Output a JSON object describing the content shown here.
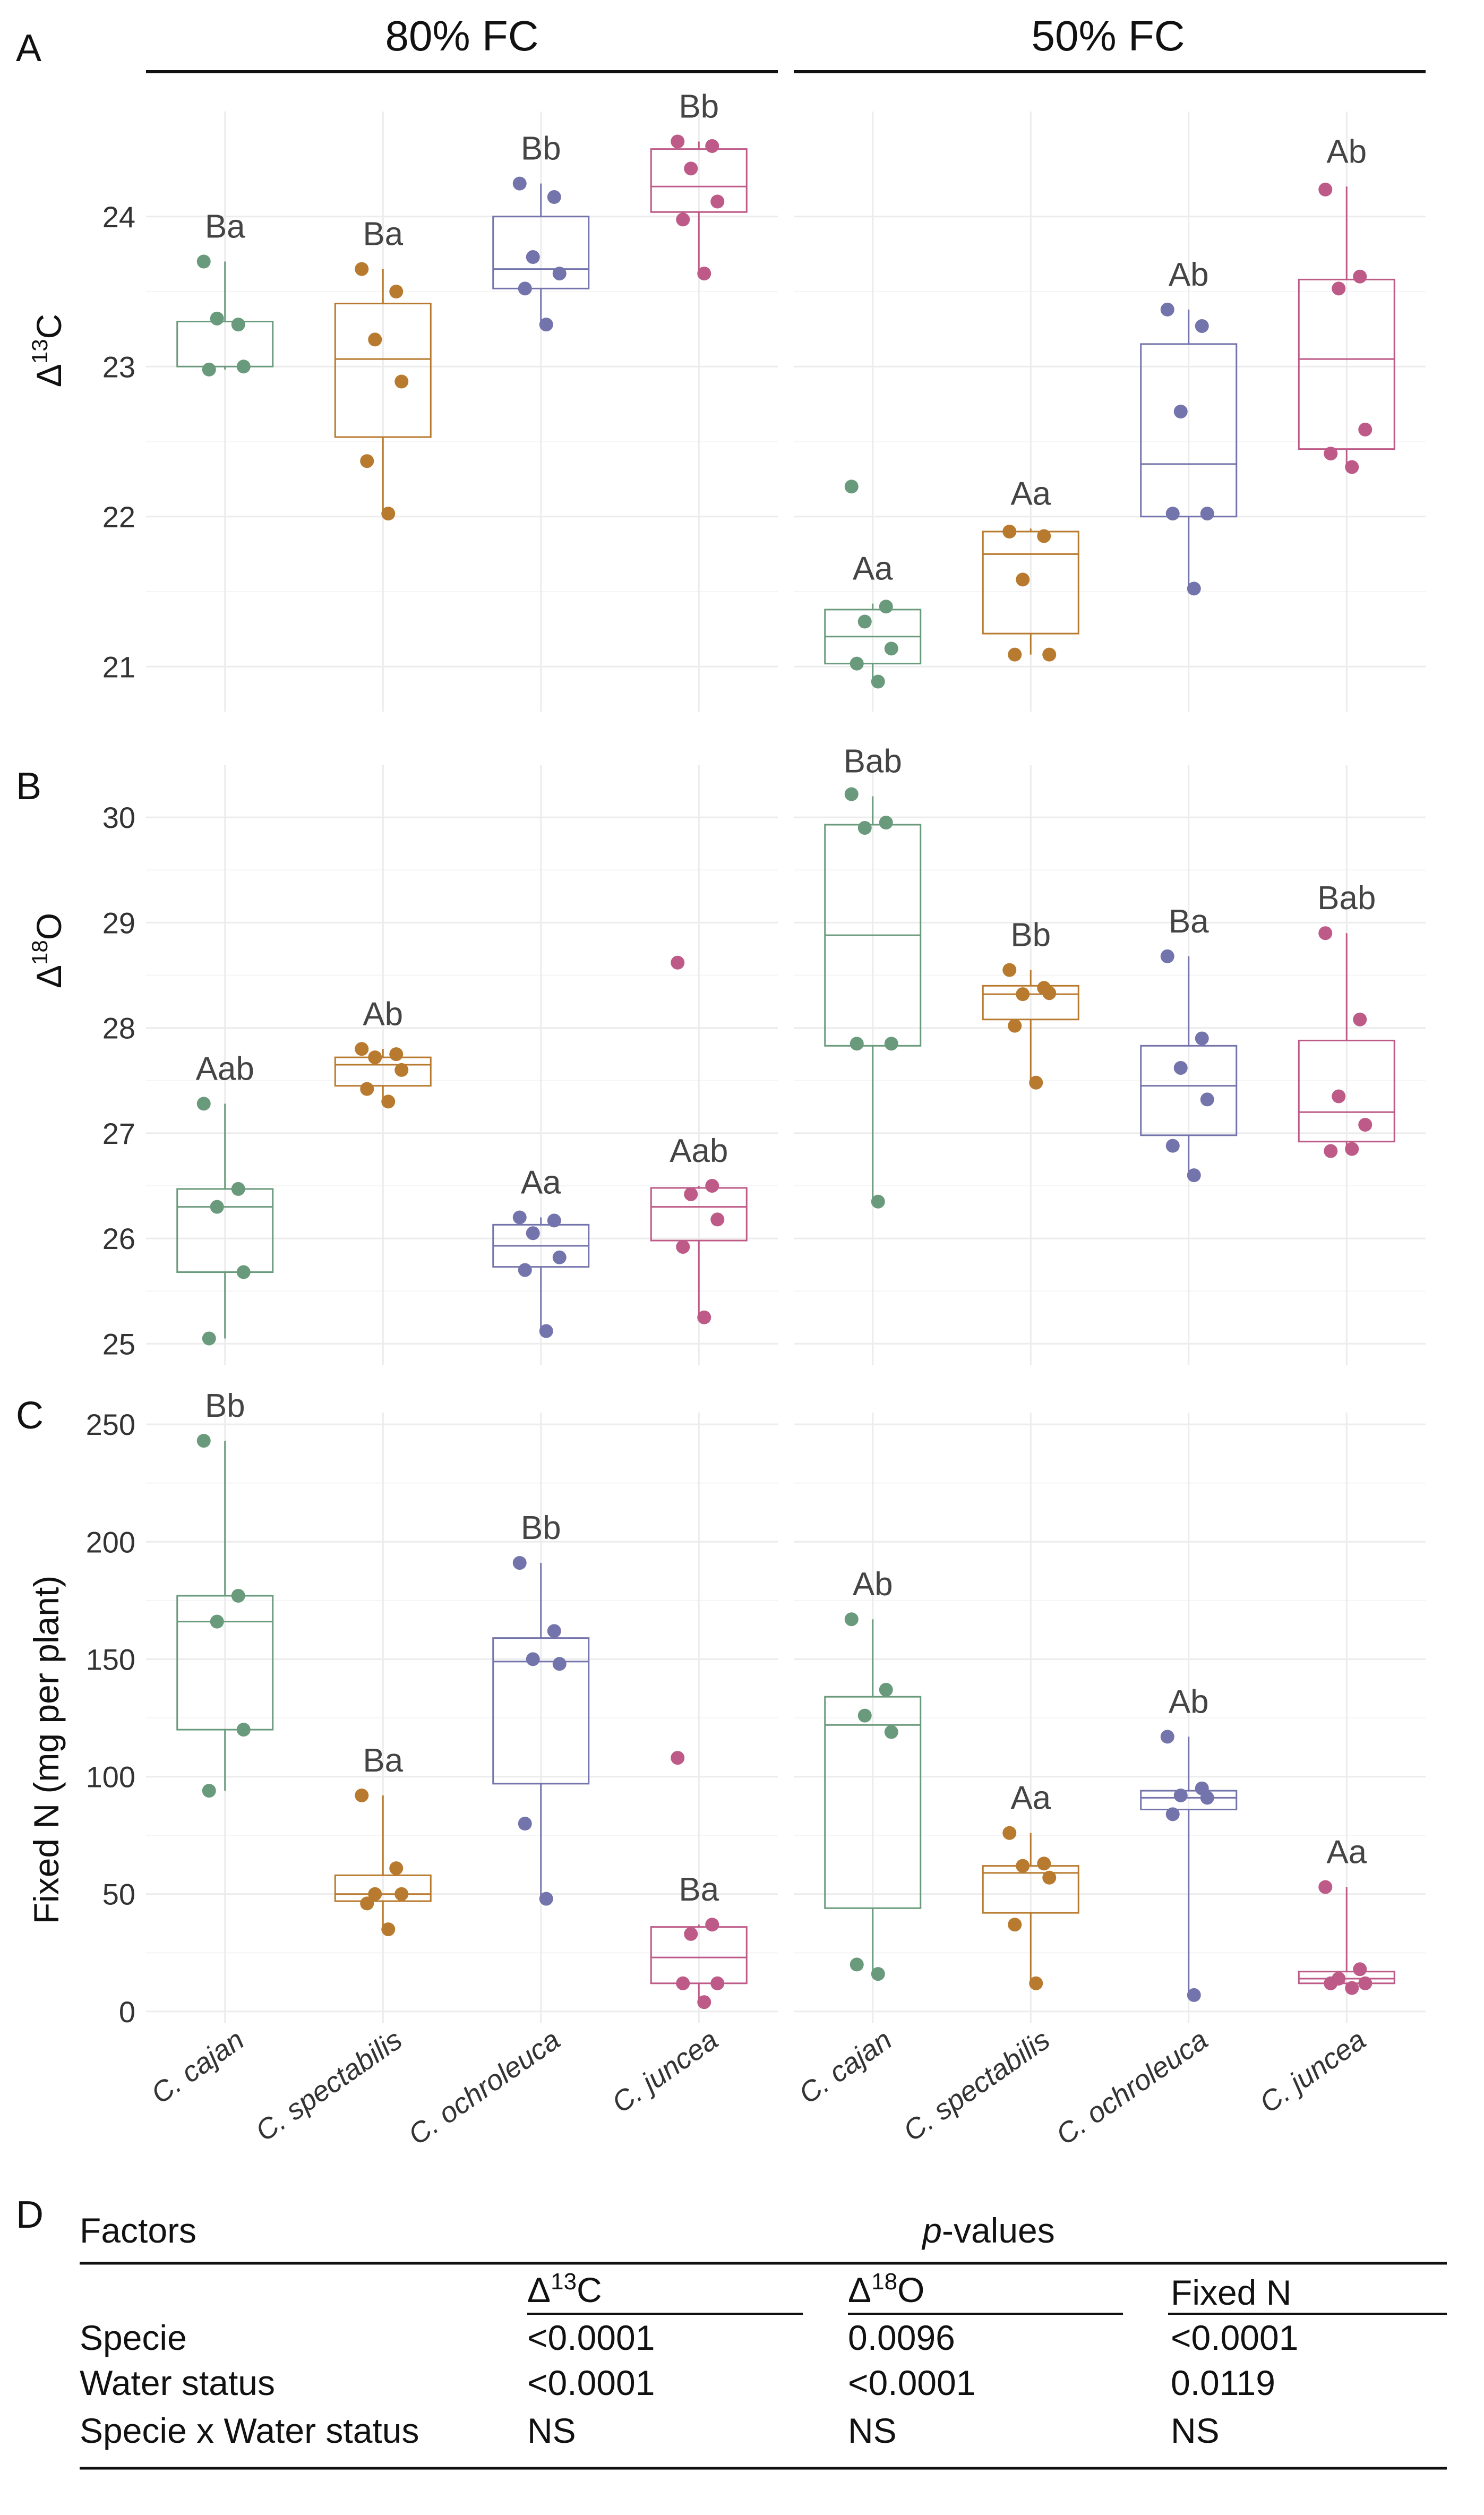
{
  "facets": [
    "80% FC",
    "50% FC"
  ],
  "panel_letters": [
    "A",
    "B",
    "C",
    "D"
  ],
  "categories": [
    "C. cajan",
    "C. spectabilis",
    "C. ochroleuca",
    "C. juncea"
  ],
  "colors": [
    "#6a9a7c",
    "#b87a2e",
    "#7474ac",
    "#bd5a87"
  ],
  "chart_data": [
    {
      "type": "box",
      "panel": "A",
      "ylabel_main": "Δ",
      "ylabel_sup": "13",
      "ylabel_tail": "C",
      "ylim": [
        20.7,
        24.7
      ],
      "yticks": [
        21,
        22,
        23,
        24
      ],
      "groups": [
        {
          "facet": "80% FC",
          "category": "C. cajan",
          "box": {
            "min": 22.98,
            "q1": 23.0,
            "median": 23.3,
            "q3": 23.3,
            "max": 23.7
          },
          "points": [
            23.7,
            23.28,
            23.32,
            23.0,
            22.98
          ],
          "label": "Ba"
        },
        {
          "facet": "80% FC",
          "category": "C. spectabilis",
          "box": {
            "min": 22.0,
            "q1": 22.53,
            "median": 23.05,
            "q3": 23.42,
            "max": 23.65
          },
          "points": [
            23.65,
            23.5,
            23.18,
            22.9,
            22.37,
            22.02
          ],
          "label": "Ba"
        },
        {
          "facet": "80% FC",
          "category": "C. ochroleuca",
          "box": {
            "min": 23.28,
            "q1": 23.52,
            "median": 23.65,
            "q3": 24.0,
            "max": 24.22
          },
          "points": [
            24.22,
            24.13,
            23.73,
            23.62,
            23.52,
            23.28
          ],
          "label": "Bb"
        },
        {
          "facet": "80% FC",
          "category": "C. juncea",
          "box": {
            "min": 23.6,
            "q1": 24.03,
            "median": 24.2,
            "q3": 24.45,
            "max": 24.5
          },
          "points": [
            24.5,
            24.47,
            24.32,
            24.1,
            23.98,
            23.62
          ],
          "label": "Bb"
        },
        {
          "facet": "50% FC",
          "category": "C. cajan",
          "box": {
            "min": 20.9,
            "q1": 21.02,
            "median": 21.2,
            "q3": 21.38,
            "max": 21.42
          },
          "points": [
            22.2,
            21.4,
            21.3,
            21.12,
            21.02,
            20.9
          ],
          "label": "Aa"
        },
        {
          "facet": "50% FC",
          "category": "C. spectabilis",
          "box": {
            "min": 21.08,
            "q1": 21.22,
            "median": 21.75,
            "q3": 21.9,
            "max": 21.92
          },
          "points": [
            21.9,
            21.87,
            21.58,
            21.08,
            21.08
          ],
          "label": "Aa"
        },
        {
          "facet": "50% FC",
          "category": "C. ochroleuca",
          "box": {
            "min": 21.5,
            "q1": 22.0,
            "median": 22.35,
            "q3": 23.15,
            "max": 23.38
          },
          "points": [
            23.38,
            23.27,
            22.7,
            22.02,
            22.02,
            21.52
          ],
          "label": "Ab"
        },
        {
          "facet": "50% FC",
          "category": "C. juncea",
          "box": {
            "min": 22.33,
            "q1": 22.45,
            "median": 23.05,
            "q3": 23.58,
            "max": 24.2
          },
          "points": [
            24.18,
            23.6,
            23.52,
            22.58,
            22.42,
            22.33
          ],
          "label": "Ab"
        }
      ]
    },
    {
      "type": "box",
      "panel": "B",
      "ylabel_main": "Δ",
      "ylabel_sup": "18",
      "ylabel_tail": "O",
      "ylim": [
        24.8,
        30.5
      ],
      "yticks": [
        25,
        26,
        27,
        28,
        29,
        30
      ],
      "groups": [
        {
          "facet": "80% FC",
          "category": "C. cajan",
          "box": {
            "min": 25.05,
            "q1": 25.68,
            "median": 26.3,
            "q3": 26.47,
            "max": 27.28
          },
          "points": [
            27.28,
            26.47,
            26.3,
            25.68,
            25.05
          ],
          "label": "Aab"
        },
        {
          "facet": "80% FC",
          "category": "C. spectabilis",
          "box": {
            "min": 27.32,
            "q1": 27.45,
            "median": 27.65,
            "q3": 27.72,
            "max": 27.8
          },
          "points": [
            27.8,
            27.75,
            27.72,
            27.6,
            27.42,
            27.3
          ],
          "label": "Ab"
        },
        {
          "facet": "80% FC",
          "category": "C. ochroleuca",
          "box": {
            "min": 25.12,
            "q1": 25.73,
            "median": 25.93,
            "q3": 26.13,
            "max": 26.2
          },
          "points": [
            26.2,
            26.17,
            26.05,
            25.82,
            25.7,
            25.12
          ],
          "label": "Aa"
        },
        {
          "facet": "80% FC",
          "category": "C. juncea",
          "box": {
            "min": 25.28,
            "q1": 25.98,
            "median": 26.3,
            "q3": 26.48,
            "max": 26.5
          },
          "points": [
            28.62,
            26.5,
            26.42,
            26.18,
            25.92,
            25.25
          ],
          "label": "Aab"
        },
        {
          "facet": "50% FC",
          "category": "C. cajan",
          "box": {
            "min": 26.35,
            "q1": 27.83,
            "median": 28.88,
            "q3": 29.93,
            "max": 30.2
          },
          "points": [
            30.22,
            29.95,
            29.9,
            27.85,
            27.85,
            26.35
          ],
          "label": "Bab"
        },
        {
          "facet": "50% FC",
          "category": "C. spectabilis",
          "box": {
            "min": 27.5,
            "q1": 28.08,
            "median": 28.32,
            "q3": 28.4,
            "max": 28.55
          },
          "points": [
            28.55,
            28.38,
            28.32,
            28.33,
            28.02,
            27.48
          ],
          "label": "Bb"
        },
        {
          "facet": "50% FC",
          "category": "C. ochroleuca",
          "box": {
            "min": 26.6,
            "q1": 26.98,
            "median": 27.45,
            "q3": 27.83,
            "max": 28.68
          },
          "points": [
            28.68,
            27.9,
            27.62,
            27.32,
            26.88,
            26.6
          ],
          "label": "Ba"
        },
        {
          "facet": "50% FC",
          "category": "C. juncea",
          "box": {
            "min": 26.83,
            "q1": 26.92,
            "median": 27.2,
            "q3": 27.88,
            "max": 28.9
          },
          "points": [
            28.9,
            28.08,
            27.35,
            27.08,
            26.83,
            26.85
          ],
          "label": "Bab"
        }
      ]
    },
    {
      "type": "box",
      "panel": "C",
      "ylabel": "Fixed N (mg per plant)",
      "ylim": [
        -5,
        255
      ],
      "yticks": [
        0,
        50,
        100,
        150,
        200,
        250
      ],
      "groups": [
        {
          "facet": "80% FC",
          "category": "C. cajan",
          "box": {
            "min": 94,
            "q1": 120,
            "median": 166,
            "q3": 177,
            "max": 243
          },
          "points": [
            243,
            177,
            166,
            120,
            94
          ],
          "label": "Bb"
        },
        {
          "facet": "80% FC",
          "category": "C. spectabilis",
          "box": {
            "min": 35,
            "q1": 47,
            "median": 50,
            "q3": 58,
            "max": 92
          },
          "points": [
            92,
            61,
            50,
            50,
            46,
            35
          ],
          "label": "Ba"
        },
        {
          "facet": "80% FC",
          "category": "C. ochroleuca",
          "box": {
            "min": 48,
            "q1": 97,
            "median": 149,
            "q3": 159,
            "max": 191
          },
          "points": [
            191,
            162,
            150,
            148,
            80,
            48
          ],
          "label": "Bb"
        },
        {
          "facet": "80% FC",
          "category": "C. juncea",
          "box": {
            "min": 4,
            "q1": 12,
            "median": 23,
            "q3": 36,
            "max": 37
          },
          "points": [
            108,
            37,
            33,
            12,
            12,
            4
          ],
          "label": "Ba"
        },
        {
          "facet": "50% FC",
          "category": "C. cajan",
          "box": {
            "min": 16,
            "q1": 44,
            "median": 122,
            "q3": 134,
            "max": 167
          },
          "points": [
            167,
            137,
            126,
            119,
            20,
            16
          ],
          "label": "Ab"
        },
        {
          "facet": "50% FC",
          "category": "C. spectabilis",
          "box": {
            "min": 11,
            "q1": 42,
            "median": 59,
            "q3": 62,
            "max": 76
          },
          "points": [
            76,
            63,
            62,
            57,
            37,
            12
          ],
          "label": "Aa"
        },
        {
          "facet": "50% FC",
          "category": "C. ochroleuca",
          "box": {
            "min": 7,
            "q1": 86,
            "median": 91,
            "q3": 94,
            "max": 117
          },
          "points": [
            117,
            95,
            92,
            91,
            84,
            7
          ],
          "label": "Ab"
        },
        {
          "facet": "50% FC",
          "category": "C. juncea",
          "box": {
            "min": 10,
            "q1": 12,
            "median": 14,
            "q3": 17,
            "max": 53
          },
          "points": [
            53,
            18,
            14,
            12,
            12,
            10
          ],
          "label": "Aa"
        }
      ]
    }
  ],
  "table": {
    "factors_header": "Factors",
    "pvalues_header_italic": "p",
    "pvalues_header_rest": "-values",
    "columns": [
      {
        "main": "Δ",
        "sup": "13",
        "tail": "C"
      },
      {
        "main": "Δ",
        "sup": "18",
        "tail": "O"
      },
      {
        "main": "Fixed N",
        "sup": "",
        "tail": ""
      }
    ],
    "rows": [
      {
        "factor": "Specie",
        "values": [
          "<0.0001",
          "0.0096",
          "<0.0001"
        ]
      },
      {
        "factor": "Water status",
        "values": [
          "<0.0001",
          "<0.0001",
          "0.0119"
        ]
      },
      {
        "factor": "Specie x Water status",
        "values": [
          "NS",
          "NS",
          "NS"
        ]
      }
    ]
  }
}
